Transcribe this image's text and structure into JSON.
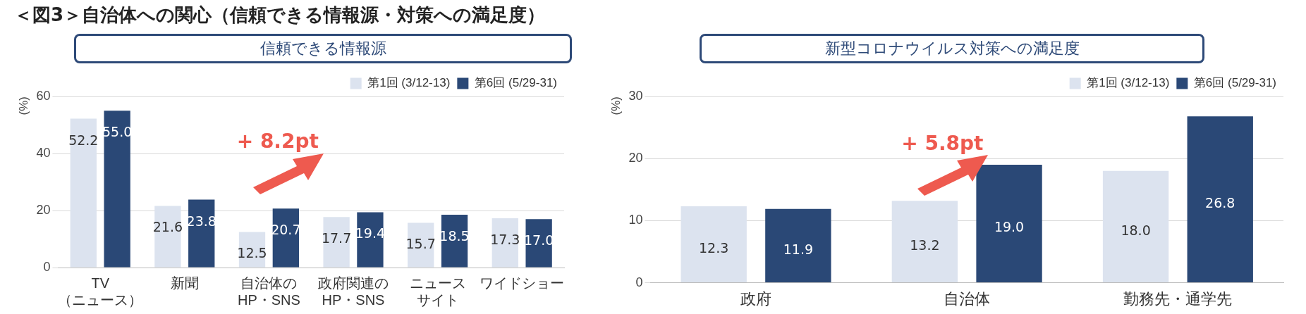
{
  "chart_data": [
    {
      "type": "bar",
      "title": "＜図3＞自治体への関心（信頼できる情報源・対策への満足度）",
      "subtitle": "信頼できる情報源",
      "ylabel": "(%)",
      "categories": [
        "TV（ニュース）",
        "新聞",
        "自治体のHP・SNS",
        "政府関連のHP・SNS",
        "ニュースサイト",
        "ワイドショー"
      ],
      "series": [
        {
          "name": "第1回 (3/12-13)",
          "color": "#dce3ef",
          "values": [
            52.2,
            21.6,
            12.5,
            17.7,
            15.7,
            17.3
          ],
          "value_labels": [
            "52.2",
            "21.6",
            "12.5",
            "17.7",
            "15.7",
            "17.3"
          ]
        },
        {
          "name": "第6回 (5/29-31)",
          "color": "#2a4876",
          "values": [
            55.0,
            23.8,
            20.7,
            19.4,
            18.5,
            17.0
          ],
          "value_labels": [
            "55.0",
            "23.8",
            "20.7",
            "19.4",
            "18.5",
            "17.0"
          ]
        }
      ],
      "ylim": [
        0,
        60
      ],
      "yticks": [
        0,
        20,
        40,
        60
      ],
      "grid": "y",
      "legend": "top right",
      "annotations": [
        "+ 8.2pt"
      ]
    },
    {
      "type": "bar",
      "title": "新型コロナウイルス対策への満足度",
      "ylabel": "(%)",
      "categories": [
        "政府",
        "自治体",
        "勤務先・通学先"
      ],
      "series": [
        {
          "name": "第1回 (3/12-13)",
          "color": "#dce3ef",
          "values": [
            12.3,
            13.2,
            18.0
          ],
          "value_labels": [
            "12.3",
            "13.2",
            "18.0"
          ]
        },
        {
          "name": "第6回 (5/29-31)",
          "color": "#2a4876",
          "values": [
            11.9,
            19.0,
            26.8
          ],
          "value_labels": [
            "11.9",
            "19.0",
            "26.8"
          ]
        }
      ],
      "ylim": [
        0,
        30
      ],
      "yticks": [
        0,
        10,
        20,
        30
      ],
      "grid": "y",
      "legend": "top right",
      "annotations": [
        "+ 5.8pt"
      ]
    }
  ]
}
